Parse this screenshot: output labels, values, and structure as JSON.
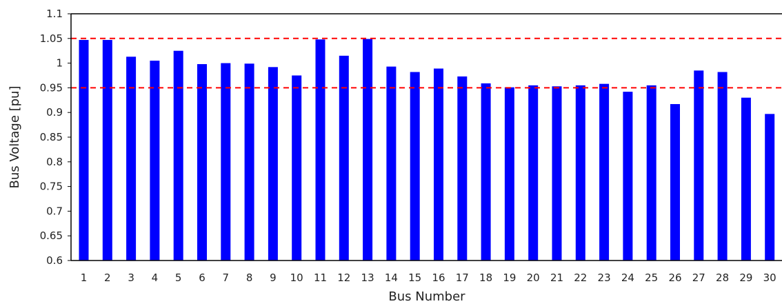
{
  "chart_data": {
    "type": "bar",
    "title": "",
    "xlabel": "Bus Number",
    "ylabel": "Bus Voltage  [pu]",
    "categories": [
      "1",
      "2",
      "3",
      "4",
      "5",
      "6",
      "7",
      "8",
      "9",
      "10",
      "11",
      "12",
      "13",
      "14",
      "15",
      "16",
      "17",
      "18",
      "19",
      "20",
      "21",
      "22",
      "23",
      "24",
      "25",
      "26",
      "27",
      "28",
      "29",
      "30"
    ],
    "values": [
      1.047,
      1.047,
      1.013,
      1.005,
      1.025,
      0.998,
      1.0,
      0.999,
      0.992,
      0.975,
      1.048,
      1.015,
      1.049,
      0.993,
      0.982,
      0.989,
      0.973,
      0.959,
      0.951,
      0.955,
      0.953,
      0.955,
      0.958,
      0.942,
      0.955,
      0.917,
      0.985,
      0.982,
      0.93,
      0.897
    ],
    "ylim": [
      0.6,
      1.1
    ],
    "yticks": [
      "0.6",
      "0.65",
      "0.7",
      "0.75",
      "0.8",
      "0.85",
      "0.9",
      "0.95",
      "1",
      "1.05",
      "1.1"
    ],
    "reference_lines": [
      1.05,
      0.95
    ],
    "bar_color": "#0000ff",
    "reference_line_color": "#ff0000",
    "grid": false,
    "legend": "none"
  }
}
